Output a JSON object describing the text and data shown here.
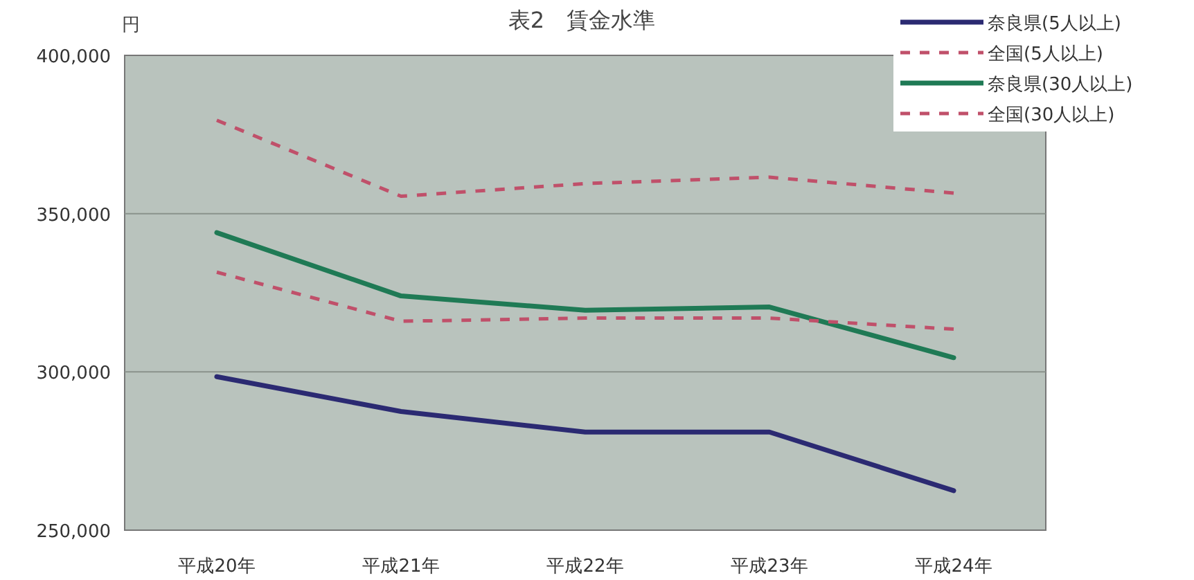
{
  "chart_data": {
    "type": "line",
    "title": "表2　賃金水準",
    "ylabel": "円",
    "categories": [
      "平成20年",
      "平成21年",
      "平成22年",
      "平成23年",
      "平成24年"
    ],
    "series": [
      {
        "name": "奈良県(5人以上)",
        "color": "#2b2a72",
        "line_style": "solid",
        "values": [
          298500,
          287500,
          281000,
          281000,
          262500
        ]
      },
      {
        "name": "全国(5人以上)",
        "color": "#c0506a",
        "line_style": "dashed",
        "values": [
          379500,
          355500,
          359500,
          361500,
          356500
        ]
      },
      {
        "name": "奈良県(30人以上)",
        "color": "#1f7a55",
        "line_style": "solid",
        "values": [
          344000,
          324000,
          319500,
          320500,
          304500
        ]
      },
      {
        "name": "全国(30人以上)",
        "color": "#c0506a",
        "line_style": "dashed",
        "values": [
          331500,
          316000,
          317000,
          317000,
          313500
        ]
      }
    ],
    "ylim": [
      250000,
      400000
    ],
    "yticks": [
      {
        "value": 250000,
        "label": "250,000"
      },
      {
        "value": 300000,
        "label": "300,000"
      },
      {
        "value": 350000,
        "label": "350,000"
      },
      {
        "value": 400000,
        "label": "400,000"
      }
    ],
    "grid": "y",
    "legend": "top right",
    "marker": "none"
  }
}
